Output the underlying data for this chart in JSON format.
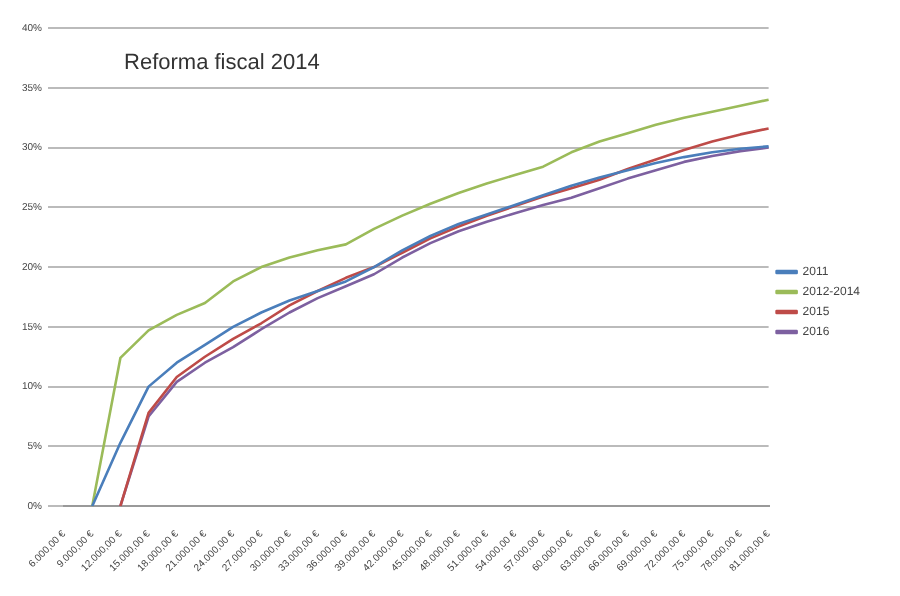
{
  "chart_data": {
    "type": "line",
    "title": "Reforma fiscal 2014",
    "categories": [
      "6.000,00 €",
      "9.000,00 €",
      "12.000,00 €",
      "15.000,00 €",
      "18.000,00 €",
      "21.000,00 €",
      "24.000,00 €",
      "27.000,00 €",
      "30.000,00 €",
      "33.000,00 €",
      "36.000,00 €",
      "39.000,00 €",
      "42.000,00 €",
      "45.000,00 €",
      "48.000,00 €",
      "51.000,00 €",
      "54.000,00 €",
      "57.000,00 €",
      "60.000,00 €",
      "63.000,00 €",
      "66.000,00 €",
      "69.000,00 €",
      "72.000,00 €",
      "75.000,00 €",
      "78.000,00 €",
      "81.000,00 €"
    ],
    "series": [
      {
        "name": "2011",
        "color": "#4a7ebb",
        "values": [
          null,
          0,
          5.3,
          10,
          12,
          13.5,
          15,
          16.2,
          17.2,
          18,
          18.8,
          20,
          21.4,
          22.6,
          23.6,
          24.4,
          25.2,
          26,
          26.8,
          27.5,
          28.1,
          28.7,
          29.2,
          29.6,
          29.9,
          30.1
        ]
      },
      {
        "name": "2012-2014",
        "color": "#9bbb59",
        "values": [
          null,
          0,
          12.4,
          14.7,
          16,
          17,
          18.8,
          20,
          20.8,
          21.4,
          21.9,
          23.2,
          24.3,
          25.3,
          26.2,
          27,
          27.7,
          28.4,
          29.6,
          30.5,
          31.2,
          31.9,
          32.5,
          33,
          33.5,
          34
        ]
      },
      {
        "name": "2015",
        "color": "#be4b48",
        "values": [
          null,
          null,
          0,
          7.8,
          10.8,
          12.5,
          14,
          15.3,
          16.8,
          18,
          19.1,
          20,
          21.2,
          22.4,
          23.4,
          24.3,
          25.1,
          25.9,
          26.6,
          27.3,
          28.2,
          29,
          29.8,
          30.5,
          31.1,
          31.6
        ]
      },
      {
        "name": "2016",
        "color": "#7d60a0",
        "values": [
          null,
          null,
          0,
          7.5,
          10.4,
          12,
          13.3,
          14.8,
          16.2,
          17.4,
          18.4,
          19.4,
          20.8,
          22,
          23,
          23.8,
          24.5,
          25.2,
          25.8,
          26.6,
          27.4,
          28.1,
          28.8,
          29.3,
          29.7,
          30
        ]
      }
    ],
    "ylim": [
      0,
      40
    ],
    "yticks": [
      {
        "value": 0,
        "label": "0%"
      },
      {
        "value": 5,
        "label": "5%"
      },
      {
        "value": 10,
        "label": "10%"
      },
      {
        "value": 15,
        "label": "15%"
      },
      {
        "value": 20,
        "label": "20%"
      },
      {
        "value": 25,
        "label": "25%"
      },
      {
        "value": 30,
        "label": "30%"
      },
      {
        "value": 35,
        "label": "35%"
      },
      {
        "value": 40,
        "label": "40%"
      }
    ],
    "grid": "y",
    "legend": "right",
    "marker": "none",
    "line_style": "solid"
  }
}
